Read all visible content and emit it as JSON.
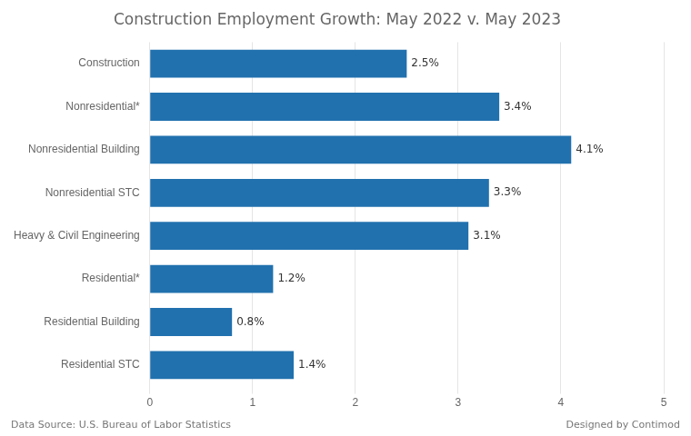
{
  "chart_data": {
    "type": "bar",
    "orientation": "horizontal",
    "title": "Construction Employment Growth: May 2022 v. May 2023",
    "categories": [
      "Residential STC",
      "Residential Building",
      "Residential*",
      "Heavy & Civil Engineering",
      "Nonresidential STC",
      "Nonresidential Building",
      "Nonresidential*",
      "Construction"
    ],
    "values": [
      1.4,
      0.8,
      1.2,
      3.1,
      3.3,
      4.1,
      3.4,
      2.5
    ],
    "value_labels": [
      "1.4%",
      "0.8%",
      "1.2%",
      "3.1%",
      "3.3%",
      "4.1%",
      "3.4%",
      "2.5%"
    ],
    "data_labels": true,
    "color": "#2171ae",
    "xlim": [
      0,
      5
    ],
    "xticks": [
      0,
      1,
      2,
      3,
      4,
      5
    ],
    "grid": true,
    "annotations": [
      "Data Source: U.S. Bureau of Labor Statistics",
      "Designed by Contimod"
    ]
  }
}
